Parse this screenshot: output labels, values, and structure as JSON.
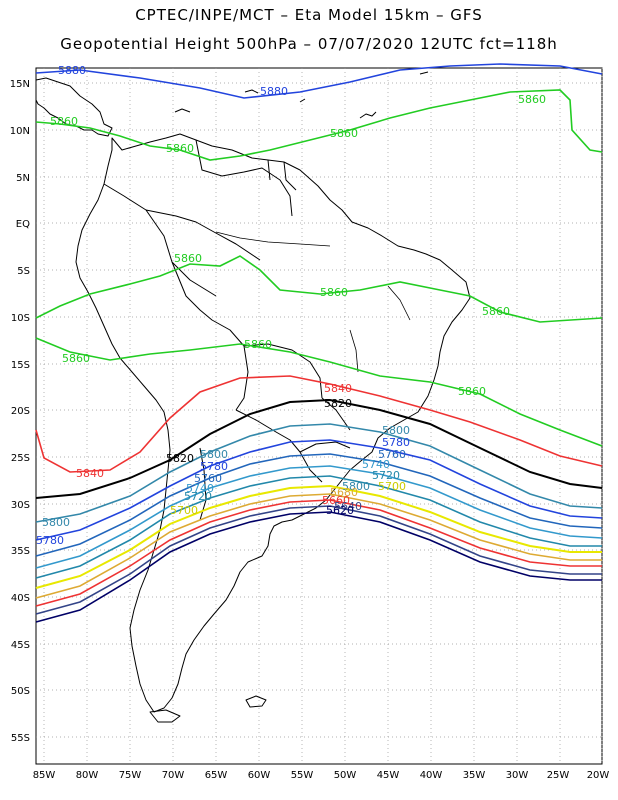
{
  "header": {
    "line1": "CPTEC/INPE/MCT –  Eta Model 15km – GFS",
    "line2": "Geopotential Height 500hPa – 07/07/2020 12UTC fct=118h"
  },
  "axes": {
    "lat_ticks": [
      "15N",
      "10N",
      "5N",
      "EQ",
      "5S",
      "10S",
      "15S",
      "20S",
      "25S",
      "30S",
      "35S",
      "40S",
      "45S",
      "50S",
      "55S"
    ],
    "lon_ticks": [
      "85W",
      "80W",
      "75W",
      "70W",
      "65W",
      "60W",
      "55W",
      "50W",
      "45W",
      "40W",
      "35W",
      "30W",
      "25W",
      "20W"
    ],
    "lon_range": [
      -86,
      -20
    ],
    "lat_range": [
      16.5,
      -58.5
    ],
    "grid": "dotted"
  },
  "contours": [
    {
      "value": 5880,
      "color": "#2244dd",
      "labels": [
        "5880",
        "5880"
      ]
    },
    {
      "value": 5860,
      "color": "#22cc22",
      "labels": [
        "5860",
        "5860",
        "5860",
        "5860",
        "5860",
        "5860",
        "5860",
        "5860",
        "5860",
        "5860"
      ]
    },
    {
      "value": 5840,
      "color": "#ee3333",
      "labels": [
        "5840",
        "5840"
      ]
    },
    {
      "value": 5820,
      "color": "#000000",
      "labels": [
        "5820",
        "5820"
      ]
    },
    {
      "value": 5800,
      "color": "#3388aa",
      "labels": [
        "5800",
        "5800",
        "5800",
        "5800"
      ]
    },
    {
      "value": 5780,
      "color": "#2244dd",
      "labels": [
        "5780",
        "5780",
        "5780"
      ]
    },
    {
      "value": 5760,
      "color": "#2266bb",
      "labels": [
        "5760",
        "5760"
      ]
    },
    {
      "value": 5740,
      "color": "#3399cc",
      "labels": [
        "5740",
        "5740"
      ]
    },
    {
      "value": 5720,
      "color": "#2288aa",
      "labels": [
        "5720",
        "5720"
      ]
    },
    {
      "value": 5700,
      "color": "#e8e800",
      "labels": [
        "5700",
        "5700"
      ]
    },
    {
      "value": 5680,
      "color": "#ddaa33",
      "labels": [
        "5680"
      ]
    },
    {
      "value": 5660,
      "color": "#ee3333",
      "labels": [
        "5660"
      ]
    },
    {
      "value": 5640,
      "color": "#334488",
      "labels": [
        "5640"
      ]
    },
    {
      "value": 5620,
      "color": "#000066",
      "labels": [
        "5620"
      ]
    }
  ]
}
